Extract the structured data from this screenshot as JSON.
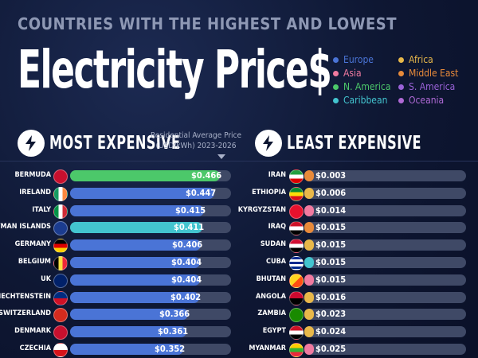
{
  "header": {
    "subtitle": "COUNTRIES WITH THE HIGHEST AND LOWEST",
    "title": "Electricity Price$"
  },
  "legend": [
    {
      "label": "Europe",
      "color": "#4a74d6"
    },
    {
      "label": "Asia",
      "color": "#f07aa0"
    },
    {
      "label": "N. America",
      "color": "#4cc86a"
    },
    {
      "label": "Caribbean",
      "color": "#43c4cf"
    },
    {
      "label": "Africa",
      "color": "#e8b84a"
    },
    {
      "label": "Middle East",
      "color": "#e88a3a"
    },
    {
      "label": "S. America",
      "color": "#9a62d8"
    },
    {
      "label": "Oceania",
      "color": "#b06ad6"
    }
  ],
  "sections": {
    "most": {
      "label": "MOST EXPENSIVE",
      "icon": "lightning-bolt-icon"
    },
    "least": {
      "label": "LEAST EXPENSIVE",
      "icon": "lightning-bolt-icon"
    }
  },
  "note": {
    "line1": "Residential Average Price",
    "line2": "(USD/kWh) 2023-2026"
  },
  "chart_data": [
    {
      "type": "bar",
      "title": "MOST EXPENSIVE",
      "value_label": "Residential Average Price (USD/kWh) 2023-2026",
      "categories": [
        "BERMUDA",
        "IRELAND",
        "ITALY",
        "CAYMAN ISLANDS",
        "GERMANY",
        "BELGIUM",
        "UK",
        "LIECHTENSTEIN",
        "SWITZERLAND",
        "DENMARK",
        "CZECHIA"
      ],
      "values": [
        0.466,
        0.447,
        0.415,
        0.411,
        0.406,
        0.404,
        0.404,
        0.402,
        0.366,
        0.361,
        0.352
      ],
      "labels": [
        "$0.466",
        "$0.447",
        "$0.415",
        "$0.411",
        "$0.406",
        "$0.404",
        "$0.404",
        "$0.402",
        "$0.366",
        "$0.361",
        "$0.352"
      ],
      "regions": [
        "N. America",
        "Europe",
        "Europe",
        "Caribbean",
        "Europe",
        "Europe",
        "Europe",
        "Europe",
        "Europe",
        "Europe",
        "Europe"
      ],
      "colors": [
        "#4cc86a",
        "#4a74d6",
        "#4a74d6",
        "#43c4cf",
        "#4a74d6",
        "#4a74d6",
        "#4a74d6",
        "#4a74d6",
        "#4a74d6",
        "#4a74d6",
        "#4a74d6"
      ],
      "flags": [
        "bermuda-flag-icon",
        "ireland-flag-icon",
        "italy-flag-icon",
        "cayman-islands-flag-icon",
        "germany-flag-icon",
        "belgium-flag-icon",
        "uk-flag-icon",
        "liechtenstein-flag-icon",
        "switzerland-flag-icon",
        "denmark-flag-icon",
        "czechia-flag-icon"
      ],
      "xlim": [
        0,
        0.5
      ]
    },
    {
      "type": "bar",
      "title": "LEAST EXPENSIVE",
      "categories": [
        "IRAN",
        "ETHIOPIA",
        "KYRGYZSTAN",
        "IRAQ",
        "SUDAN",
        "CUBA",
        "BHUTAN",
        "ANGOLA",
        "ZAMBIA",
        "EGYPT",
        "MYANMAR"
      ],
      "values": [
        0.003,
        0.006,
        0.014,
        0.015,
        0.015,
        0.015,
        0.015,
        0.016,
        0.023,
        0.024,
        0.025
      ],
      "labels": [
        "$0.003",
        "$0.006",
        "$0.014",
        "$0.015",
        "$0.015",
        "$0.015",
        "$0.015",
        "$0.016",
        "$0.023",
        "$0.024",
        "$0.025"
      ],
      "regions": [
        "Middle East",
        "Africa",
        "Asia",
        "Middle East",
        "Africa",
        "Caribbean",
        "Asia",
        "Africa",
        "Africa",
        "Africa",
        "Asia"
      ],
      "colors": [
        "#e88a3a",
        "#e8b84a",
        "#f07aa0",
        "#e88a3a",
        "#e8b84a",
        "#43c4cf",
        "#f07aa0",
        "#e8b84a",
        "#e8b84a",
        "#e8b84a",
        "#f07aa0"
      ],
      "flags": [
        "iran-flag-icon",
        "ethiopia-flag-icon",
        "kyrgyzstan-flag-icon",
        "iraq-flag-icon",
        "sudan-flag-icon",
        "cuba-flag-icon",
        "bhutan-flag-icon",
        "angola-flag-icon",
        "zambia-flag-icon",
        "egypt-flag-icon",
        "myanmar-flag-icon"
      ],
      "xlim": [
        0,
        0.5
      ]
    }
  ]
}
